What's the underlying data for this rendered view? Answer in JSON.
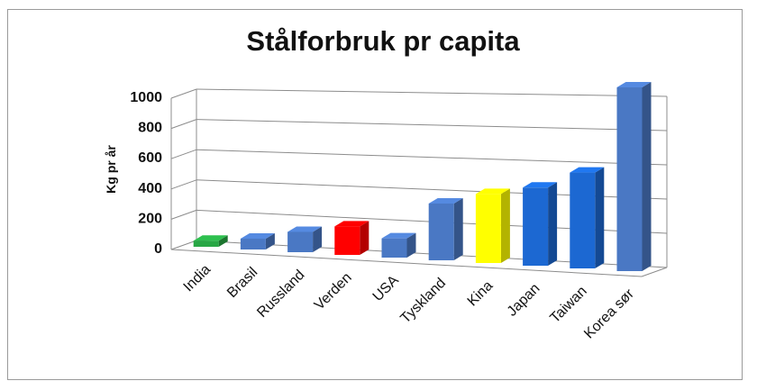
{
  "chart_data": {
    "type": "bar",
    "title": "Stålforbruk pr capita",
    "xlabel": "",
    "ylabel": "Kg pr år",
    "ylim": [
      0,
      1000
    ],
    "yticks": [
      "0",
      "200",
      "400",
      "600",
      "800",
      "1000"
    ],
    "grid": true,
    "style": "3d-column",
    "categories": [
      "India",
      "Brasil",
      "Russland",
      "Verden",
      "USA",
      "Tyskland",
      "Kina",
      "Japan",
      "Taiwan",
      "Korea sør"
    ],
    "values": [
      40,
      70,
      130,
      180,
      120,
      350,
      420,
      470,
      570,
      1080
    ],
    "colors": [
      "#28a745",
      "#4a78c4",
      "#4a78c4",
      "#ff0000",
      "#4a78c4",
      "#4a78c4",
      "#ffff00",
      "#1c68d2",
      "#1c68d2",
      "#4a78c4"
    ]
  }
}
